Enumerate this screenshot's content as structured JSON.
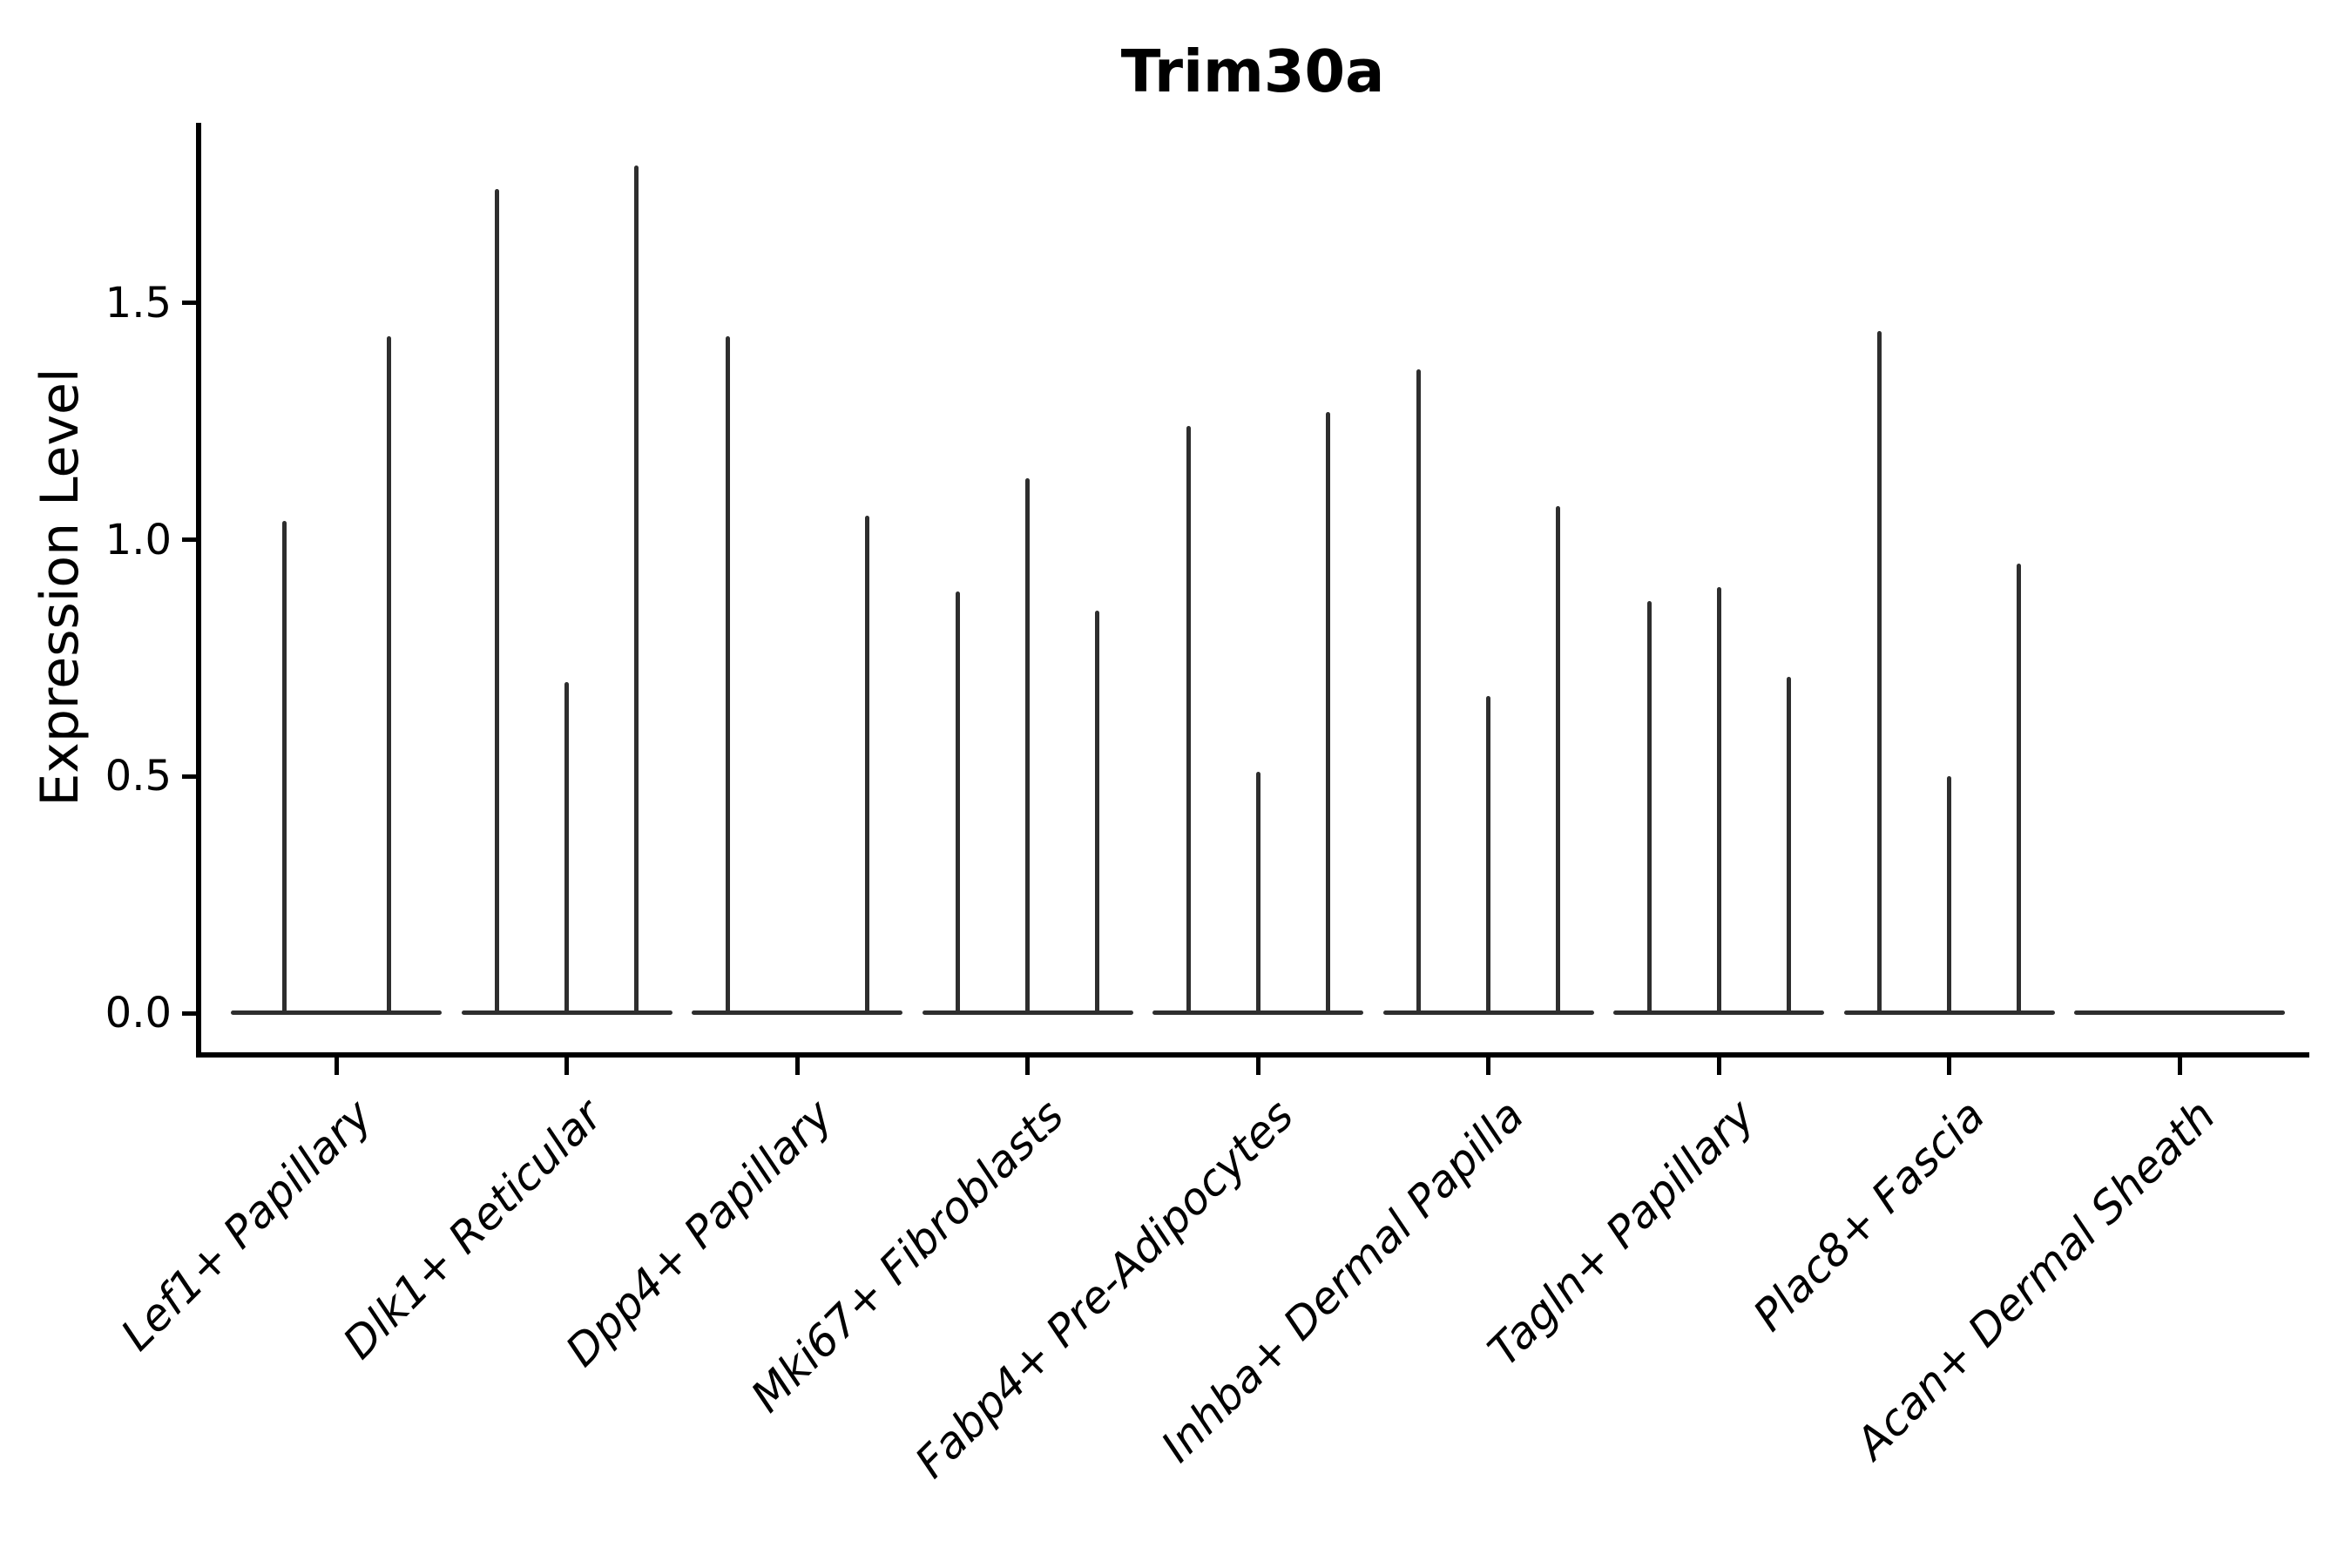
{
  "figure": {
    "title": "Trim30a",
    "background_color": "#ffffff",
    "text_color": "#000000",
    "violin_color": "#2e2e2e"
  },
  "chart_data": {
    "type": "violin",
    "title": "Trim30a",
    "xlabel": "",
    "ylabel": "Expression Level",
    "ylim": [
      -0.08,
      1.88
    ],
    "yticks": [
      0.0,
      0.5,
      1.0,
      1.5
    ],
    "ytick_labels": [
      "0.0",
      "0.5",
      "1.0",
      "1.5"
    ],
    "grid": false,
    "legend": "none",
    "description": "Single-gene expression violin plot; each cluster shows needle-thin violins rising from a flat zero baseline (most cells at 0). Peak values are the maximum expression per violin.",
    "categories": [
      "Lef1+ Papillary",
      "Dlk1+ Reticular",
      "Dpp4+ Papillary",
      "Mki67+ Fibroblasts",
      "Fabp4+ Pre-Adipocytes",
      "Inhba+ Dermal Papilla",
      "Tagln+ Papillary",
      "Plac8+ Fascia",
      "Acan+ Dermal Sheath"
    ],
    "series": [
      {
        "name": "Lef1+ Papillary",
        "violins": [
          {
            "offset": -60,
            "peak": 1.04
          },
          {
            "offset": 60,
            "peak": 1.43
          }
        ]
      },
      {
        "name": "Dlk1+ Reticular",
        "violins": [
          {
            "offset": -80,
            "peak": 1.74
          },
          {
            "offset": 0,
            "peak": 0.7
          },
          {
            "offset": 80,
            "peak": 1.79
          }
        ]
      },
      {
        "name": "Dpp4+ Papillary",
        "violins": [
          {
            "offset": -80,
            "peak": 1.43
          },
          {
            "offset": 0,
            "peak": 0.0
          },
          {
            "offset": 80,
            "peak": 1.05
          }
        ]
      },
      {
        "name": "Mki67+ Fibroblasts",
        "violins": [
          {
            "offset": -80,
            "peak": 0.89
          },
          {
            "offset": 0,
            "peak": 1.13
          },
          {
            "offset": 80,
            "peak": 0.85
          }
        ]
      },
      {
        "name": "Fabp4+ Pre-Adipocytes",
        "violins": [
          {
            "offset": -80,
            "peak": 1.24
          },
          {
            "offset": 0,
            "peak": 0.51
          },
          {
            "offset": 80,
            "peak": 1.27
          }
        ]
      },
      {
        "name": "Inhba+ Dermal Papilla",
        "violins": [
          {
            "offset": -80,
            "peak": 1.36
          },
          {
            "offset": 0,
            "peak": 0.67
          },
          {
            "offset": 80,
            "peak": 1.07
          }
        ]
      },
      {
        "name": "Tagln+ Papillary",
        "violins": [
          {
            "offset": -80,
            "peak": 0.87
          },
          {
            "offset": 0,
            "peak": 0.9
          },
          {
            "offset": 80,
            "peak": 0.71
          }
        ]
      },
      {
        "name": "Plac8+ Fascia",
        "violins": [
          {
            "offset": -80,
            "peak": 1.44
          },
          {
            "offset": 0,
            "peak": 0.5
          },
          {
            "offset": 80,
            "peak": 0.95
          }
        ]
      },
      {
        "name": "Acan+ Dermal Sheath",
        "violins": [
          {
            "offset": 0,
            "peak": 0.0
          }
        ]
      }
    ]
  }
}
